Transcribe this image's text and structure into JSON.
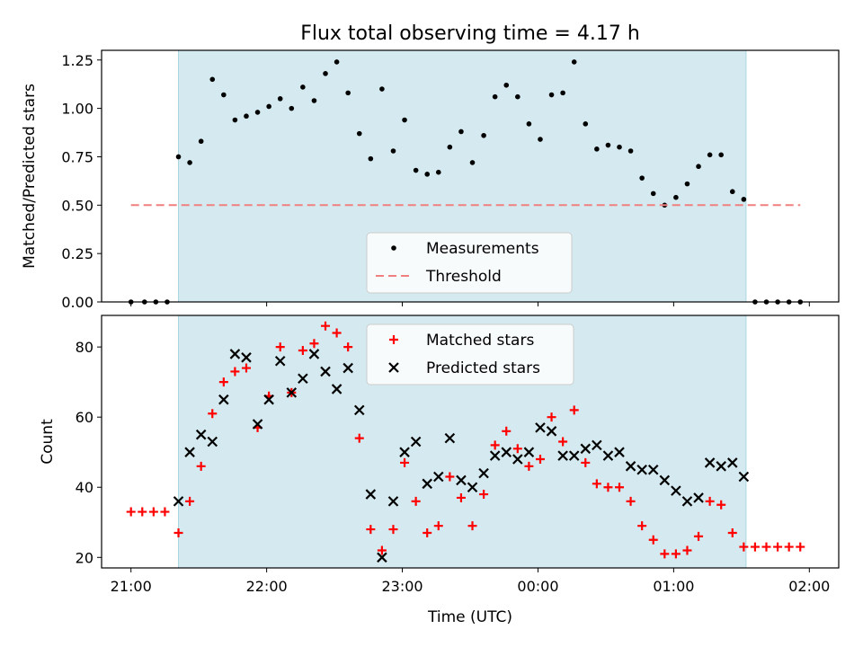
{
  "title": "Flux total observing time = 4.17 h",
  "xlabel": "Time (UTC)",
  "x_ticks": [
    "21:00",
    "22:00",
    "23:00",
    "00:00",
    "01:00",
    "02:00"
  ],
  "colors": {
    "observing_band": "#d4eaf0",
    "measurements": "#000000",
    "threshold": "#f07f7f",
    "matched": "#ff0000",
    "predicted": "#000000"
  },
  "chart_data": [
    {
      "type": "scatter",
      "ylabel": "Matched/Predicted stars",
      "ylim": [
        0,
        1.3
      ],
      "y_ticks": [
        "0.00",
        "0.25",
        "0.50",
        "0.75",
        "1.00",
        "1.25"
      ],
      "observing_window": [
        "21:21",
        "25:32"
      ],
      "legend": {
        "placement": "bottom-center",
        "entries": [
          "Measurements",
          "Threshold"
        ]
      },
      "series": [
        {
          "name": "Measurements",
          "marker": "dot",
          "x": [
            "21:00",
            "21:06",
            "21:11",
            "21:16",
            "21:21",
            "21:26",
            "21:31",
            "21:36",
            "21:41",
            "21:46",
            "21:51",
            "21:56",
            "22:01",
            "22:06",
            "22:11",
            "22:16",
            "22:21",
            "22:26",
            "22:31",
            "22:36",
            "22:41",
            "22:46",
            "22:51",
            "22:56",
            "23:01",
            "23:06",
            "23:11",
            "23:16",
            "23:21",
            "23:26",
            "23:31",
            "23:36",
            "23:41",
            "23:46",
            "23:51",
            "23:56",
            "00:01",
            "00:06",
            "00:11",
            "00:16",
            "00:21",
            "00:26",
            "00:31",
            "00:36",
            "00:41",
            "00:46",
            "00:51",
            "00:56",
            "01:01",
            "01:06",
            "01:11",
            "01:16",
            "01:21",
            "01:26",
            "01:31",
            "01:36",
            "01:41",
            "01:46",
            "01:51",
            "01:56"
          ],
          "y": [
            0,
            0,
            0,
            0,
            0.75,
            0.72,
            0.83,
            1.15,
            1.07,
            0.94,
            0.96,
            0.98,
            1.01,
            1.05,
            1.0,
            1.11,
            1.04,
            1.18,
            1.24,
            1.08,
            0.87,
            0.74,
            1.1,
            0.78,
            0.94,
            0.68,
            0.66,
            0.67,
            0.8,
            0.88,
            0.72,
            0.86,
            1.06,
            1.12,
            1.06,
            0.92,
            0.84,
            1.07,
            1.08,
            1.24,
            0.92,
            0.79,
            0.81,
            0.8,
            0.78,
            0.64,
            0.56,
            0.5,
            0.54,
            0.61,
            0.7,
            0.76,
            0.76,
            0.57,
            0.53,
            0,
            0,
            0,
            0,
            0
          ]
        },
        {
          "name": "Threshold",
          "style": "dashed",
          "x": [
            "21:00",
            "01:56"
          ],
          "y": [
            0.5,
            0.5
          ]
        }
      ]
    },
    {
      "type": "scatter",
      "ylabel": "Count",
      "ylim": [
        17,
        89
      ],
      "y_ticks": [
        "20",
        "40",
        "60",
        "80"
      ],
      "observing_window": [
        "21:21",
        "25:32"
      ],
      "legend": {
        "placement": "top-center",
        "entries": [
          "Matched stars",
          "Predicted stars"
        ]
      },
      "series": [
        {
          "name": "Matched stars",
          "marker": "plus",
          "x": [
            "21:00",
            "21:05",
            "21:10",
            "21:15",
            "21:21",
            "21:26",
            "21:31",
            "21:36",
            "21:41",
            "21:46",
            "21:51",
            "21:56",
            "22:01",
            "22:06",
            "22:11",
            "22:16",
            "22:21",
            "22:26",
            "22:31",
            "22:36",
            "22:41",
            "22:46",
            "22:51",
            "22:56",
            "23:01",
            "23:06",
            "23:11",
            "23:16",
            "23:21",
            "23:26",
            "23:31",
            "23:36",
            "23:41",
            "23:46",
            "23:51",
            "23:56",
            "00:01",
            "00:06",
            "00:11",
            "00:16",
            "00:21",
            "00:26",
            "00:31",
            "00:36",
            "00:41",
            "00:46",
            "00:51",
            "00:56",
            "01:01",
            "01:06",
            "01:11",
            "01:16",
            "01:21",
            "01:26",
            "01:31",
            "01:36",
            "01:41",
            "01:46",
            "01:51",
            "01:56"
          ],
          "y": [
            33,
            33,
            33,
            33,
            27,
            36,
            46,
            61,
            70,
            73,
            74,
            57,
            66,
            80,
            67,
            79,
            81,
            86,
            84,
            80,
            54,
            28,
            22,
            28,
            47,
            36,
            27,
            29,
            43,
            37,
            29,
            38,
            52,
            56,
            51,
            46,
            48,
            60,
            53,
            62,
            47,
            41,
            40,
            40,
            36,
            29,
            25,
            21,
            21,
            22,
            26,
            36,
            35,
            27,
            23,
            23,
            23,
            23,
            23,
            23
          ]
        },
        {
          "name": "Predicted stars",
          "marker": "x",
          "x": [
            "21:21",
            "21:26",
            "21:31",
            "21:36",
            "21:41",
            "21:46",
            "21:51",
            "21:56",
            "22:01",
            "22:06",
            "22:11",
            "22:16",
            "22:21",
            "22:26",
            "22:31",
            "22:36",
            "22:41",
            "22:46",
            "22:51",
            "22:56",
            "23:01",
            "23:06",
            "23:11",
            "23:16",
            "23:21",
            "23:26",
            "23:31",
            "23:36",
            "23:41",
            "23:46",
            "23:51",
            "23:56",
            "00:01",
            "00:06",
            "00:11",
            "00:16",
            "00:21",
            "00:26",
            "00:31",
            "00:36",
            "00:41",
            "00:46",
            "00:51",
            "00:56",
            "01:01",
            "01:06",
            "01:11",
            "01:16",
            "01:21",
            "01:26",
            "01:31"
          ],
          "y": [
            36,
            50,
            55,
            53,
            65,
            78,
            77,
            58,
            65,
            76,
            67,
            71,
            78,
            73,
            68,
            74,
            62,
            38,
            20,
            36,
            50,
            53,
            41,
            43,
            54,
            42,
            40,
            44,
            49,
            50,
            48,
            50,
            57,
            56,
            49,
            49,
            51,
            52,
            49,
            50,
            46,
            45,
            45,
            42,
            39,
            36,
            37,
            47,
            46,
            47,
            43
          ]
        }
      ]
    }
  ]
}
